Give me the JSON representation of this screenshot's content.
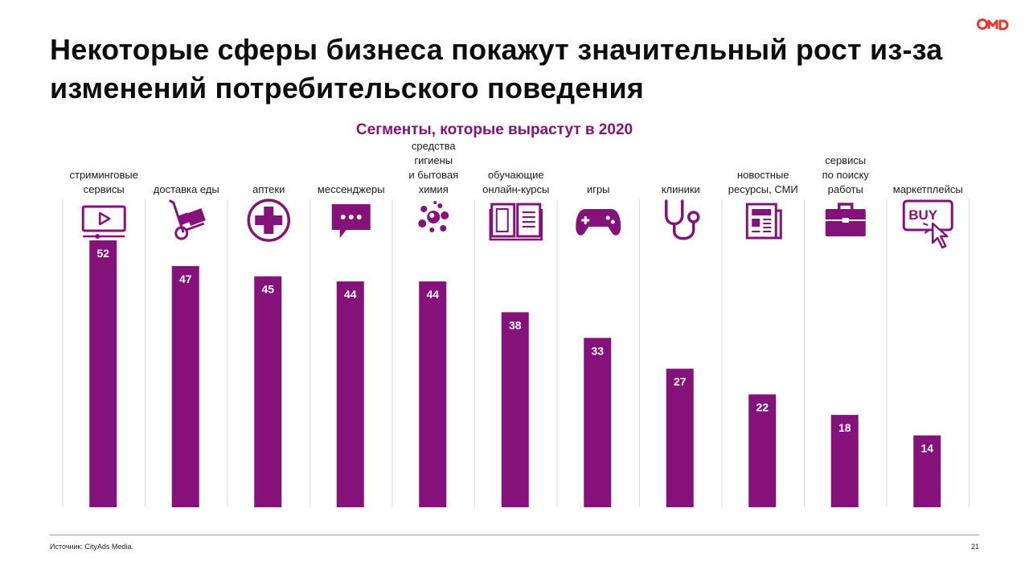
{
  "title": "Некоторые сферы бизнеса покажут значительный рост из-за изменений потребительского поведения",
  "logo": {
    "text": "OMD",
    "color": "#e8382e"
  },
  "footer": {
    "source": "Источник: CityAds Media.",
    "page": "21"
  },
  "colors": {
    "bar": "#85117a",
    "accent": "#85117a",
    "grid": "#d9d9d9"
  },
  "chart_data": {
    "type": "bar",
    "title": "Сегменты, которые вырастут в 2020",
    "categories": [
      "стриминговые сервисы",
      "доставка еды",
      "аптеки",
      "мессенджеры",
      "средства гигиены и бытовая химия",
      "обучающие онлайн-курсы",
      "игры",
      "клиники",
      "новостные ресурсы, СМИ",
      "сервисы по поиску работы",
      "маркетплейсы"
    ],
    "category_lines": [
      [
        "стриминговые",
        "сервисы"
      ],
      [
        "доставка еды"
      ],
      [
        "аптеки"
      ],
      [
        "мессенджеры"
      ],
      [
        "средства",
        "гигиены",
        "и бытовая",
        "химия"
      ],
      [
        "обучающие",
        "онлайн-курсы"
      ],
      [
        "игры"
      ],
      [
        "клиники"
      ],
      [
        "новостные",
        "ресурсы, СМИ"
      ],
      [
        "сервисы",
        "по поиску",
        "работы"
      ],
      [
        "маркетплейсы"
      ]
    ],
    "icons": [
      "video-play-icon",
      "hand-truck-icon",
      "pharmacy-cross-icon",
      "chat-bubble-icon",
      "bubbles-icon",
      "open-book-icon",
      "gamepad-icon",
      "stethoscope-icon",
      "newspaper-icon",
      "briefcase-icon",
      "buy-click-icon"
    ],
    "values": [
      52,
      47,
      45,
      44,
      44,
      38,
      33,
      27,
      22,
      18,
      14
    ],
    "ylim": [
      0,
      52
    ],
    "xlabel": "",
    "ylabel": "",
    "grid": "vertical separators",
    "legend": "none"
  }
}
